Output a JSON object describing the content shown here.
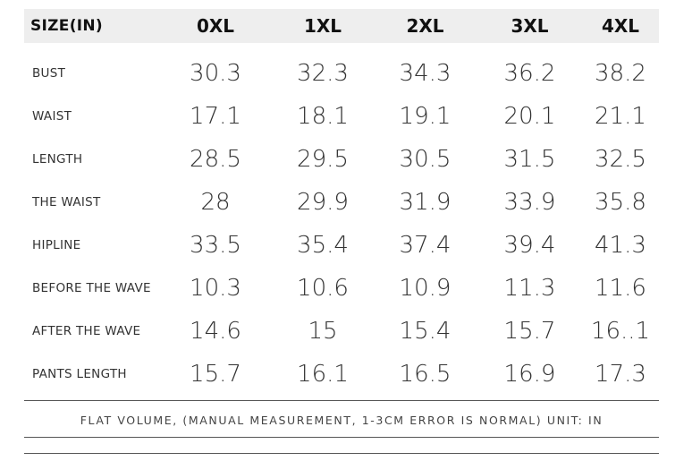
{
  "table": {
    "header_label": "SIZE(IN)",
    "sizes": [
      "0XL",
      "1XL",
      "2XL",
      "3XL",
      "4XL"
    ],
    "rows": [
      {
        "label": "BUST",
        "values": [
          "30.3",
          "32.3",
          "34.3",
          "36.2",
          "38.2"
        ]
      },
      {
        "label": "WAIST",
        "values": [
          "17.1",
          "18.1",
          "19.1",
          "20.1",
          "21.1"
        ]
      },
      {
        "label": "LENGTH",
        "values": [
          "28.5",
          "29.5",
          "30.5",
          "31.5",
          "32.5"
        ]
      },
      {
        "label": "THE WAIST",
        "values": [
          "28",
          "29.9",
          "31.9",
          "33.9",
          "35.8"
        ]
      },
      {
        "label": "HIPLINE",
        "values": [
          "33.5",
          "35.4",
          "37.4",
          "39.4",
          "41.3"
        ]
      },
      {
        "label": "BEFORE THE WAVE",
        "values": [
          "10.3",
          "10.6",
          "10.9",
          "11.3",
          "11.6"
        ]
      },
      {
        "label": "AFTER THE WAVE",
        "values": [
          "14.6",
          "15",
          "15.4",
          "15.7",
          "16..1"
        ]
      },
      {
        "label": "PANTS LENGTH",
        "values": [
          "15.7",
          "16.1",
          "16.5",
          "16.9",
          "17.3"
        ]
      }
    ]
  },
  "note": "FLAT VOLUME, (MANUAL MEASUREMENT, 1-3CM ERROR IS NORMAL) UNIT: IN"
}
